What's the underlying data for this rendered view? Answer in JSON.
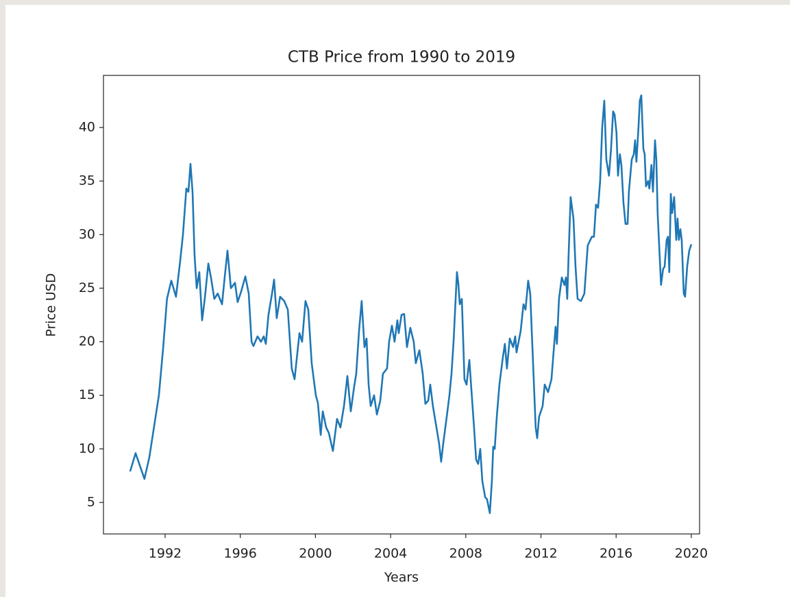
{
  "chart_data": {
    "type": "line",
    "title": "CTB Price from 1990 to 2019",
    "x_label": "Years",
    "y_label": "Price USD",
    "color": "#1f77b4",
    "grid": false,
    "x": [
      1990.14,
      1990.43,
      1990.9,
      1991.16,
      1991.45,
      1991.67,
      1991.9,
      1992.1,
      1992.33,
      1992.58,
      1992.8,
      1992.95,
      1993.13,
      1993.24,
      1993.35,
      1993.46,
      1993.57,
      1993.68,
      1993.82,
      1993.97,
      1994.11,
      1994.3,
      1994.44,
      1994.62,
      1994.8,
      1995.03,
      1995.17,
      1995.32,
      1995.5,
      1995.72,
      1995.86,
      1996.05,
      1996.27,
      1996.45,
      1996.6,
      1996.7,
      1996.92,
      1997.1,
      1997.25,
      1997.36,
      1997.5,
      1997.69,
      1997.8,
      1997.94,
      1998.12,
      1998.34,
      1998.53,
      1998.74,
      1998.89,
      1999.04,
      1999.15,
      1999.29,
      1999.47,
      1999.62,
      1999.8,
      2000.02,
      2000.13,
      2000.28,
      2000.39,
      2000.57,
      2000.71,
      2000.93,
      2001.15,
      2001.33,
      2001.52,
      2001.7,
      2001.88,
      2002.06,
      2002.17,
      2002.32,
      2002.46,
      2002.61,
      2002.72,
      2002.83,
      2002.94,
      2003.12,
      2003.27,
      2003.45,
      2003.59,
      2003.81,
      2003.92,
      2004.07,
      2004.21,
      2004.36,
      2004.43,
      2004.58,
      2004.72,
      2004.87,
      2005.05,
      2005.23,
      2005.34,
      2005.53,
      2005.71,
      2005.85,
      2006.0,
      2006.11,
      2006.25,
      2006.44,
      2006.58,
      2006.69,
      2006.8,
      2006.95,
      2007.13,
      2007.24,
      2007.35,
      2007.53,
      2007.6,
      2007.68,
      2007.79,
      2007.93,
      2008.04,
      2008.19,
      2008.3,
      2008.44,
      2008.55,
      2008.66,
      2008.77,
      2008.88,
      2009.03,
      2009.13,
      2009.28,
      2009.39,
      2009.46,
      2009.54,
      2009.65,
      2009.79,
      2009.97,
      2010.08,
      2010.19,
      2010.34,
      2010.52,
      2010.63,
      2010.7,
      2010.92,
      2011.07,
      2011.18,
      2011.32,
      2011.43,
      2011.58,
      2011.72,
      2011.8,
      2011.9,
      2012.09,
      2012.2,
      2012.38,
      2012.56,
      2012.67,
      2012.78,
      2012.85,
      2012.96,
      2013.11,
      2013.25,
      2013.33,
      2013.4,
      2013.47,
      2013.58,
      2013.73,
      2013.84,
      2013.95,
      2014.13,
      2014.31,
      2014.49,
      2014.71,
      2014.82,
      2014.93,
      2015.04,
      2015.15,
      2015.26,
      2015.37,
      2015.48,
      2015.62,
      2015.73,
      2015.84,
      2015.92,
      2016.02,
      2016.1,
      2016.2,
      2016.28,
      2016.39,
      2016.5,
      2016.61,
      2016.68,
      2016.83,
      2016.94,
      2017.01,
      2017.08,
      2017.19,
      2017.26,
      2017.34,
      2017.45,
      2017.52,
      2017.59,
      2017.7,
      2017.77,
      2017.88,
      2017.96,
      2018.07,
      2018.14,
      2018.21,
      2018.29,
      2018.39,
      2018.5,
      2018.58,
      2018.69,
      2018.76,
      2018.83,
      2018.91,
      2018.98,
      2019.09,
      2019.2,
      2019.27,
      2019.34,
      2019.42,
      2019.49,
      2019.6,
      2019.67,
      2019.78,
      2019.89,
      2020.0
    ],
    "values": [
      7.9,
      9.6,
      7.2,
      9.2,
      12.5,
      15,
      19.5,
      24,
      25.7,
      24.2,
      27.5,
      30,
      34.3,
      34,
      36.6,
      34,
      28,
      25,
      26.5,
      22,
      24,
      27.3,
      26,
      24,
      24.5,
      23.5,
      26,
      28.5,
      25,
      25.5,
      23.7,
      24.7,
      26.1,
      24.5,
      20,
      19.6,
      20.5,
      20,
      20.5,
      19.8,
      22.5,
      24.5,
      25.8,
      22.2,
      24.2,
      23.8,
      23,
      17.5,
      16.5,
      19,
      20.8,
      20,
      23.8,
      23,
      18,
      15,
      14.3,
      11.3,
      13.5,
      12,
      11.5,
      9.8,
      12.8,
      12,
      14,
      16.8,
      13.5,
      15.8,
      17,
      21,
      23.8,
      19.5,
      20.3,
      16,
      14,
      15,
      13.2,
      14.5,
      17,
      17.5,
      20,
      21.5,
      20,
      22,
      20.8,
      22.5,
      22.6,
      19.5,
      21.3,
      20,
      18,
      19.2,
      17,
      14.2,
      14.5,
      16,
      14,
      12,
      10.5,
      8.8,
      10.5,
      12.5,
      15,
      17,
      20,
      26.5,
      25.5,
      23.5,
      24,
      16.5,
      16,
      18.3,
      15.5,
      12,
      9,
      8.6,
      10,
      7,
      5.5,
      5.3,
      4,
      7,
      10.2,
      10,
      13,
      16,
      18.5,
      19.8,
      17.5,
      20.3,
      19.5,
      20.5,
      19,
      21,
      23.5,
      23,
      25.7,
      24.5,
      18,
      12,
      11,
      13,
      14,
      16,
      15.3,
      16.5,
      19,
      21.4,
      19.8,
      24,
      26,
      25.3,
      26,
      24,
      28,
      33.5,
      31.5,
      27,
      24,
      23.8,
      24.5,
      29,
      29.8,
      29.8,
      32.8,
      32.5,
      35,
      40,
      42.5,
      37,
      35.5,
      38,
      41.5,
      41.2,
      39.5,
      35.5,
      37.5,
      36.5,
      33,
      31,
      31,
      34,
      37,
      37.5,
      38.8,
      36.8,
      40,
      42.5,
      43,
      38,
      37.5,
      34.5,
      35,
      34.3,
      36.5,
      34,
      38.8,
      37,
      32,
      29,
      25.3,
      26.8,
      27,
      29.5,
      29.8,
      26.5,
      33.8,
      32,
      33.5,
      29.5,
      31.5,
      29.5,
      30.5,
      29.5,
      24.5,
      24.2,
      27,
      28.5,
      29.1
    ],
    "xlim": [
      1988.72,
      2020.44
    ],
    "xticks": [
      1992,
      1996,
      2000,
      2004,
      2008,
      2012,
      2016,
      2020
    ],
    "ylim": [
      2.06,
      44.86
    ],
    "yticks": [
      5,
      10,
      15,
      20,
      25,
      30,
      35,
      40
    ]
  }
}
